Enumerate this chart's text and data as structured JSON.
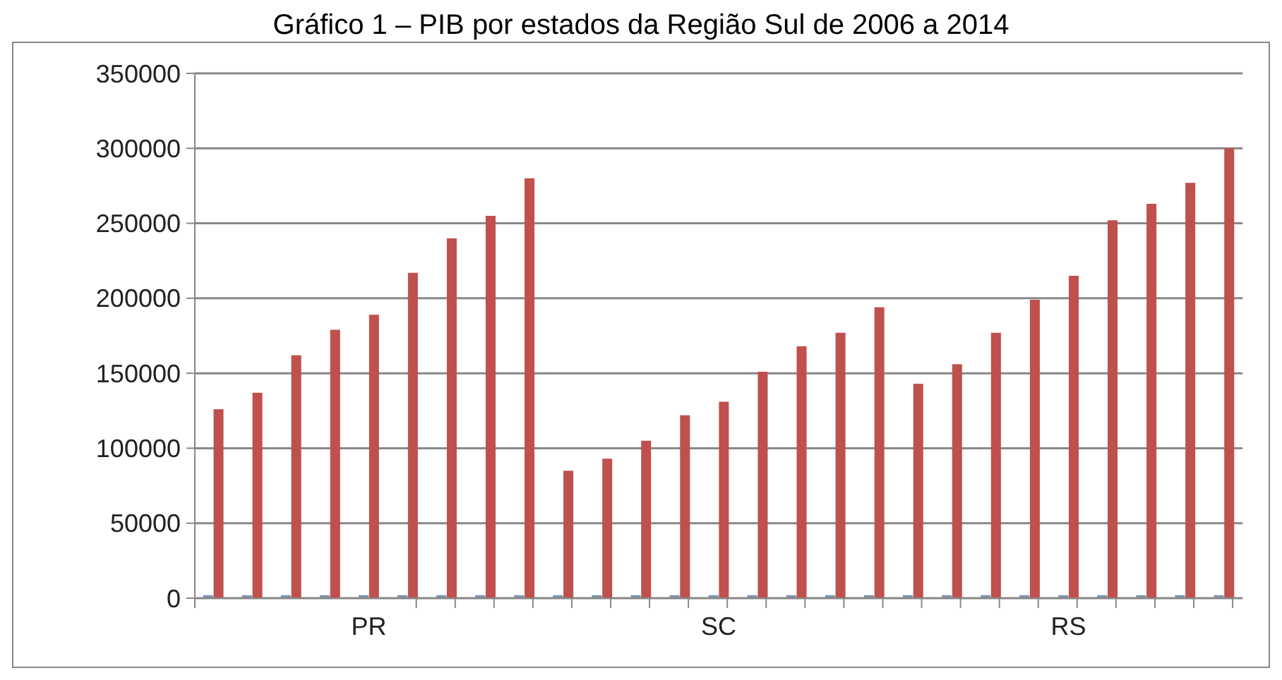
{
  "chart_data": {
    "type": "bar",
    "title": "Gráfico 1 – PIB por estados da Região Sul de 2006 a 2014",
    "categories": [
      null,
      null,
      null,
      null,
      null,
      null,
      null,
      null,
      null,
      null,
      null,
      null,
      null,
      null,
      null,
      null,
      null,
      null,
      null,
      null,
      null,
      null,
      null,
      null,
      null,
      null,
      null
    ],
    "series": [
      {
        "color": "#7f93a8",
        "values": [
          2000,
          2000,
          2000,
          2000,
          2000,
          2000,
          2000,
          2000,
          2000,
          2000,
          2000,
          2000,
          2000,
          2000,
          2000,
          2000,
          2000,
          2000,
          2000,
          2000,
          2000,
          2000,
          2000,
          2000,
          2000,
          2000,
          2000
        ]
      },
      {
        "color": "#c0504d",
        "values": [
          126000,
          137000,
          162000,
          179000,
          189000,
          217000,
          240000,
          255000,
          280000,
          85000,
          93000,
          105000,
          122000,
          131000,
          151000,
          168000,
          177000,
          194000,
          143000,
          156000,
          177000,
          199000,
          215000,
          252000,
          263000,
          277000,
          300000
        ]
      }
    ],
    "ylim": [
      0,
      350000
    ],
    "yticks": [
      0,
      50000,
      100000,
      150000,
      200000,
      250000,
      300000,
      350000
    ],
    "grid": "y",
    "annotations": [
      "PR",
      "SC",
      "RS"
    ]
  }
}
